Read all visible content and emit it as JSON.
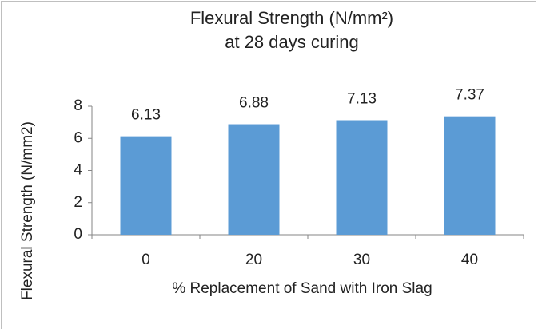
{
  "chart_data": {
    "type": "bar",
    "title": "Flexural Strength (N/mm²) at 28 days curing",
    "x_label": "% Replacement of Sand with Iron Slag",
    "y_label": "Flexural Strength (N/mm2)",
    "categories": [
      "0",
      "20",
      "30",
      "40"
    ],
    "values": [
      6.13,
      6.88,
      7.13,
      7.37
    ],
    "color": "#5b9bd5",
    "ylim": [
      0,
      8
    ],
    "yticks": [
      0,
      2,
      4,
      6,
      8
    ],
    "grid": false
  }
}
